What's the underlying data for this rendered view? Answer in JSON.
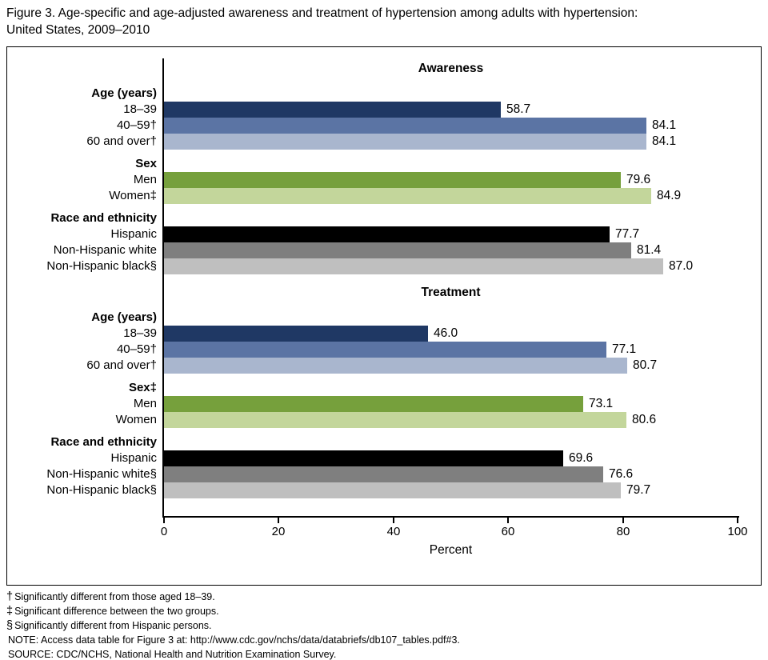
{
  "figure_title": "Figure 3. Age-specific and age-adjusted awareness and treatment of hypertension among adults with hypertension:\nUnited States, 2009–2010",
  "chart_data": {
    "type": "bar",
    "orientation": "horizontal",
    "xlabel": "Percent",
    "xlim": [
      0,
      100
    ],
    "xticks": [
      0,
      20,
      40,
      60,
      80,
      100
    ],
    "grid": false,
    "legend": "none",
    "sections": [
      {
        "label": "Awareness",
        "groups": [
          {
            "label": "Age (years)",
            "bars": [
              {
                "label": "18–39",
                "value": 58.7,
                "color": "#1f3864"
              },
              {
                "label": "40–59†",
                "value": 84.1,
                "color": "#5b74a4"
              },
              {
                "label": "60 and over†",
                "value": 84.1,
                "color": "#a9b6ce"
              }
            ]
          },
          {
            "label": "Sex",
            "bars": [
              {
                "label": "Men",
                "value": 79.6,
                "color": "#76a03c"
              },
              {
                "label": "Women‡",
                "value": 84.9,
                "color": "#c3d69b"
              }
            ]
          },
          {
            "label": "Race and ethnicity",
            "bars": [
              {
                "label": "Hispanic",
                "value": 77.7,
                "color": "#000000"
              },
              {
                "label": "Non-Hispanic white",
                "value": 81.4,
                "color": "#7f7f7f"
              },
              {
                "label": "Non-Hispanic black§",
                "value": 87.0,
                "color": "#bfbfbf"
              }
            ]
          }
        ]
      },
      {
        "label": "Treatment",
        "groups": [
          {
            "label": "Age (years)",
            "bars": [
              {
                "label": "18–39",
                "value": 46.0,
                "color": "#1f3864"
              },
              {
                "label": "40–59†",
                "value": 77.1,
                "color": "#5b74a4"
              },
              {
                "label": "60 and over†",
                "value": 80.7,
                "color": "#a9b6ce"
              }
            ]
          },
          {
            "label": "Sex‡",
            "bars": [
              {
                "label": "Men",
                "value": 73.1,
                "color": "#76a03c"
              },
              {
                "label": "Women",
                "value": 80.6,
                "color": "#c3d69b"
              }
            ]
          },
          {
            "label": "Race and ethnicity",
            "bars": [
              {
                "label": "Hispanic",
                "value": 69.6,
                "color": "#000000"
              },
              {
                "label": "Non-Hispanic white§",
                "value": 76.6,
                "color": "#7f7f7f"
              },
              {
                "label": "Non-Hispanic black§",
                "value": 79.7,
                "color": "#bfbfbf"
              }
            ]
          }
        ]
      }
    ]
  },
  "footnotes": [
    {
      "marker": "†",
      "text": "Significantly different from those aged 18–39."
    },
    {
      "marker": "‡",
      "text": "Significant difference between the two groups."
    },
    {
      "marker": "§",
      "text": "Significantly different from Hispanic persons."
    },
    {
      "marker": "",
      "text": "NOTE: Access data table for Figure 3 at: http://www.cdc.gov/nchs/data/databriefs/db107_tables.pdf#3."
    },
    {
      "marker": "",
      "text": "SOURCE: CDC/NCHS, National Health and Nutrition Examination Survey."
    }
  ]
}
